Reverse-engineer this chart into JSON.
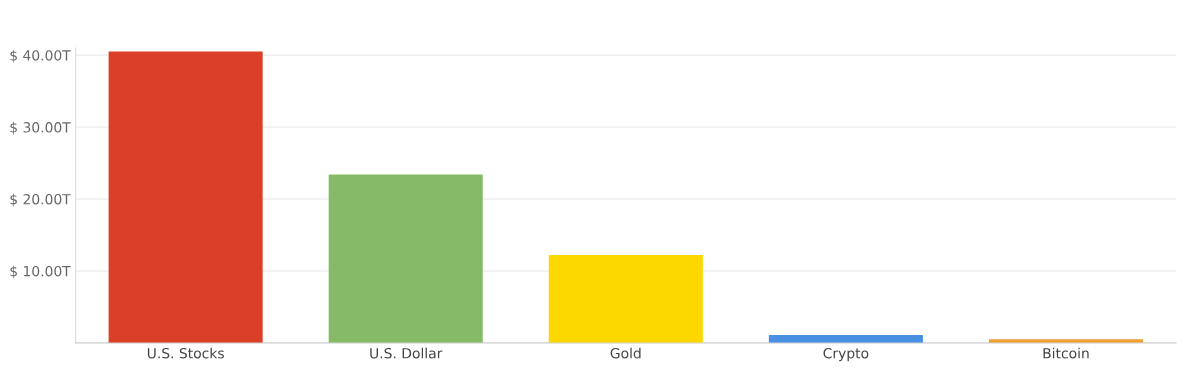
{
  "chart_data": {
    "type": "bar",
    "categories": [
      "U.S. Stocks",
      "U.S. Dollar",
      "Gold",
      "Crypto",
      "Bitcoin"
    ],
    "values": [
      40.5,
      23.4,
      12.2,
      1.1,
      0.5
    ],
    "colors": [
      "#db3f28",
      "#87ba66",
      "#fdd800",
      "#4a90e2",
      "#f0a030"
    ],
    "ylim": [
      0,
      41
    ],
    "yticks": [
      {
        "value": 10,
        "label": "$ 10.00T"
      },
      {
        "value": 20,
        "label": "$ 20.00T"
      },
      {
        "value": 30,
        "label": "$ 30.00T"
      },
      {
        "value": 40,
        "label": "$ 40.00T"
      }
    ],
    "grid": "y"
  }
}
